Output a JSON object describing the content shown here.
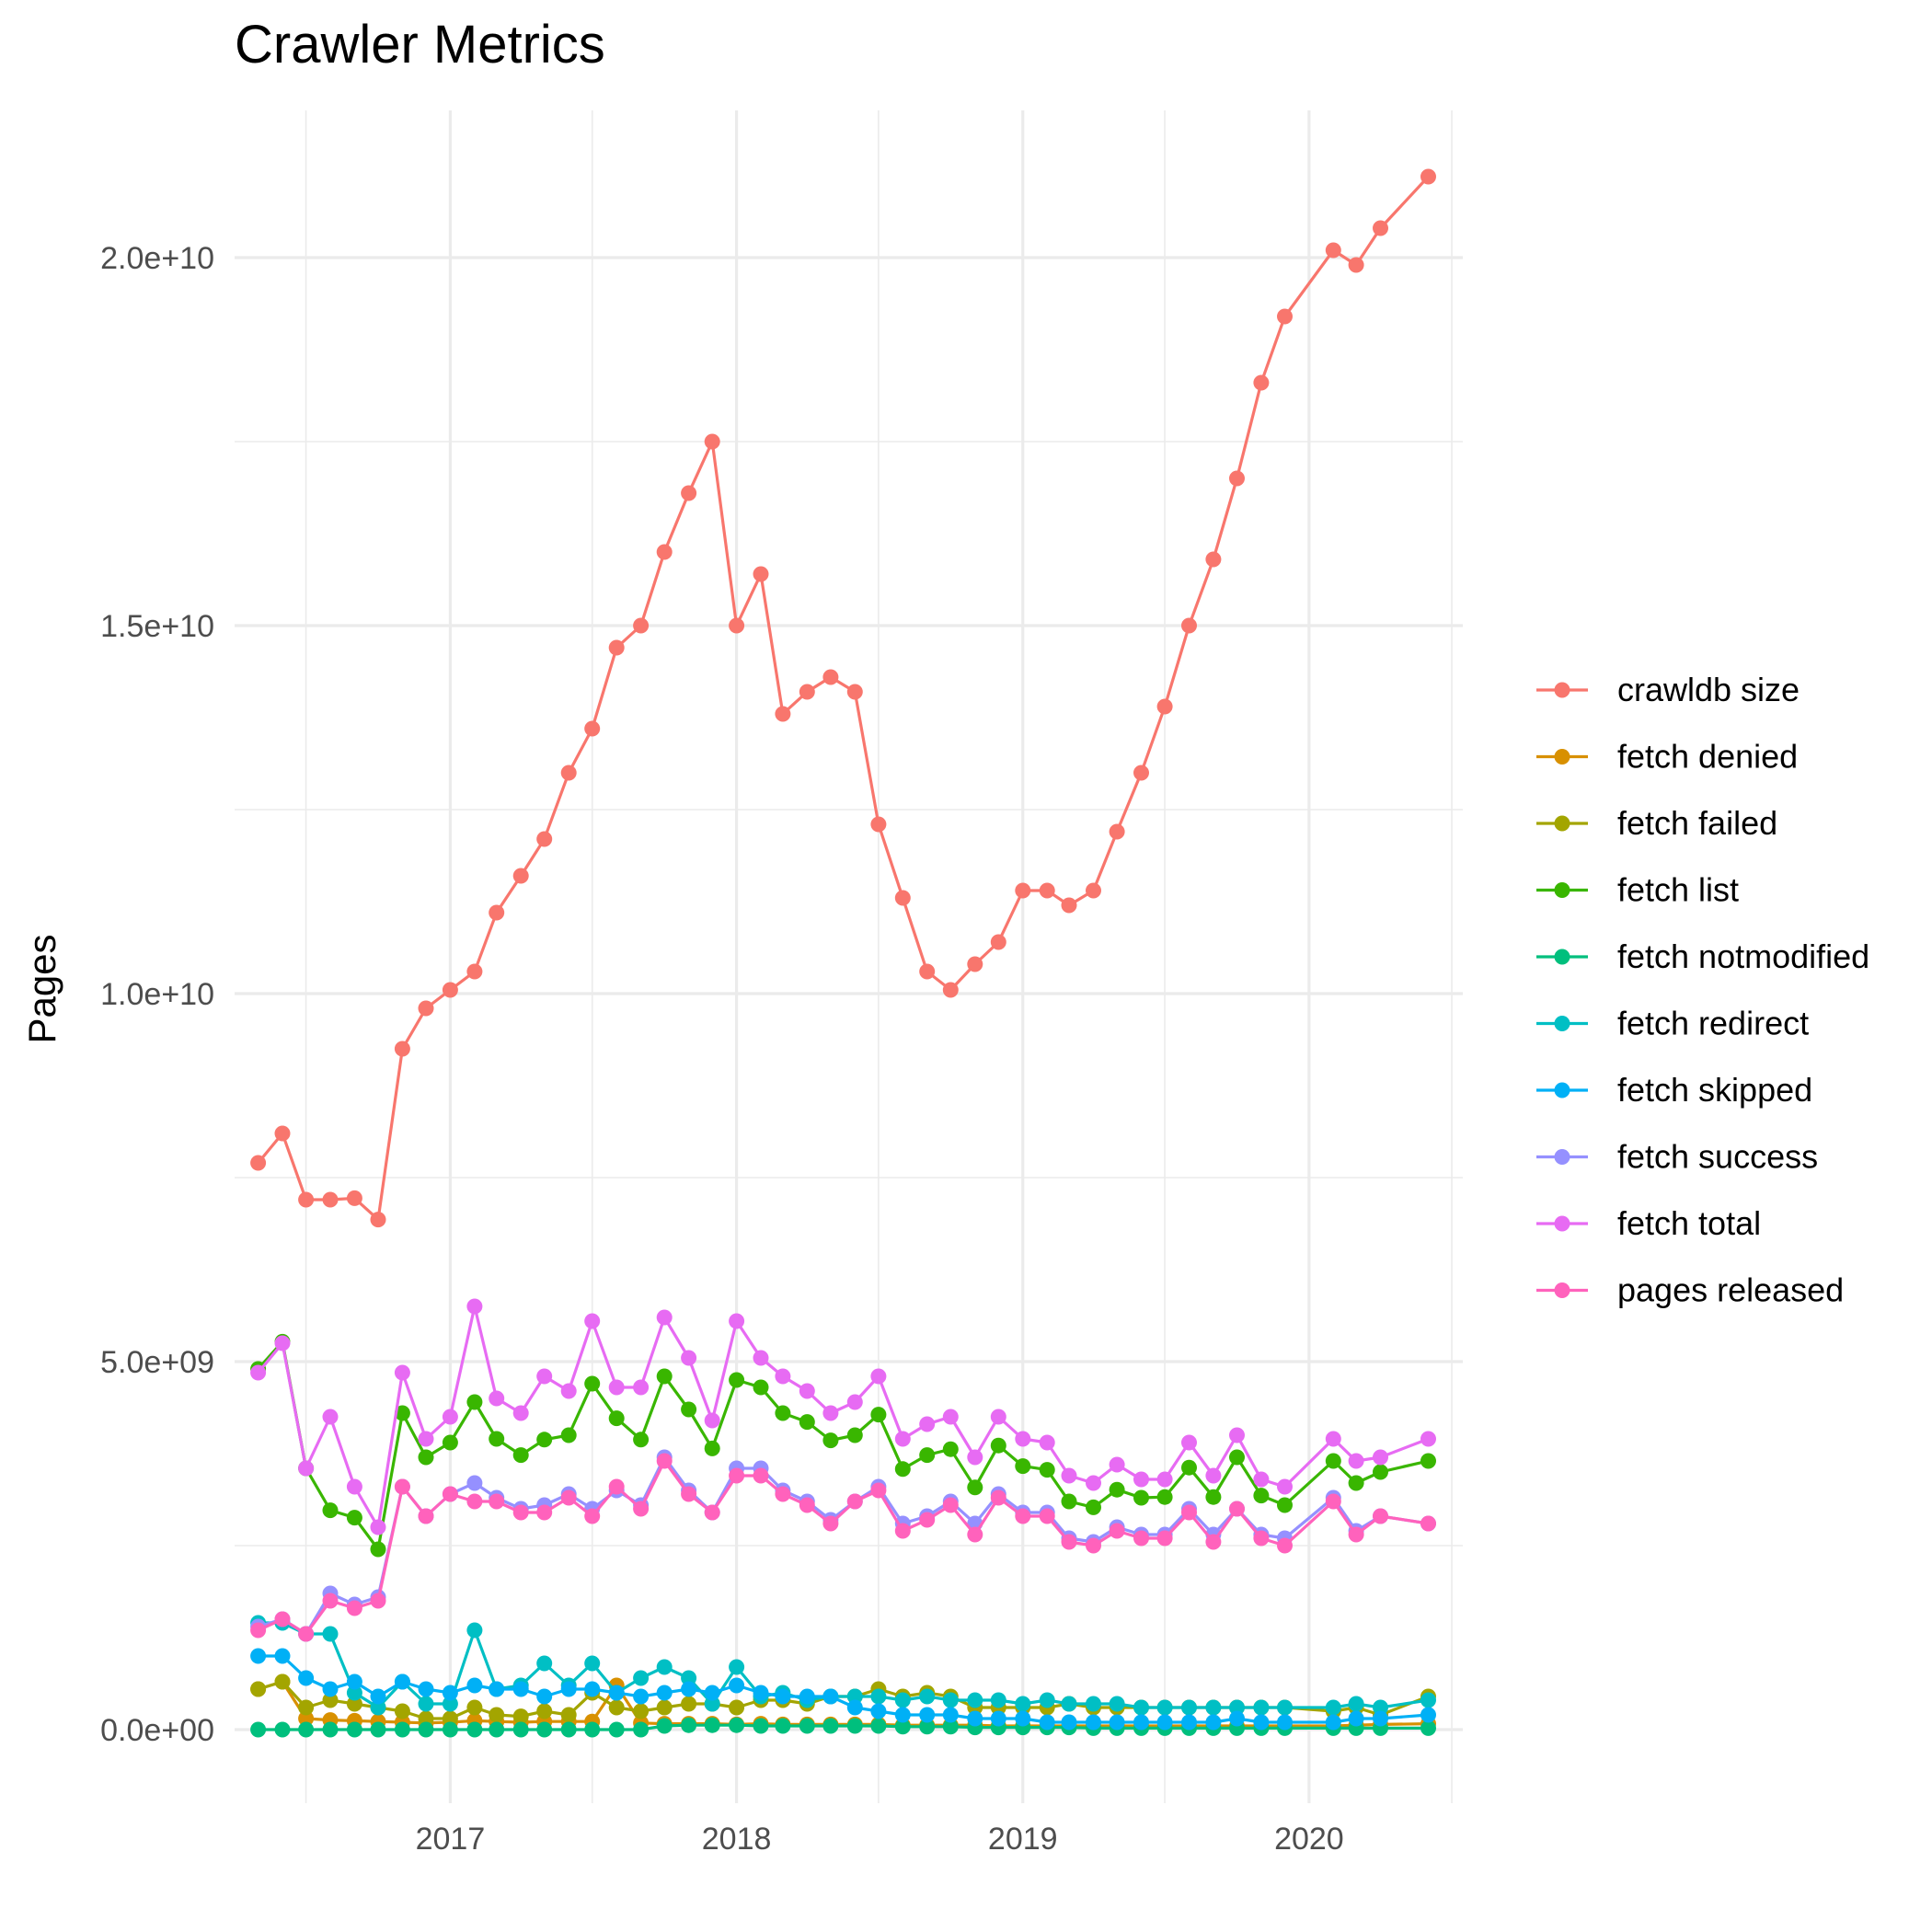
{
  "chart_data": {
    "type": "line",
    "title": "Crawler Metrics",
    "xlabel": "",
    "ylabel": "Pages",
    "x_scale": "date",
    "xlim": [
      "2016-04-01",
      "2020-07-15"
    ],
    "ylim": [
      -1000000000,
      22000000000
    ],
    "x_ticks": [
      "2017-01-01",
      "2018-01-01",
      "2019-01-01",
      "2020-01-01"
    ],
    "x_tick_labels": [
      "2017",
      "2018",
      "2019",
      "2020"
    ],
    "y_ticks": [
      0,
      5000000000,
      10000000000,
      15000000000,
      20000000000
    ],
    "y_tick_labels": [
      "0.0e+00",
      "5.0e+09",
      "1.0e+10",
      "1.5e+10",
      "2.0e+10"
    ],
    "grid": true,
    "legend_position": "right",
    "x": [
      "2016-05-01",
      "2016-06-01",
      "2016-07-01",
      "2016-08-01",
      "2016-09-01",
      "2016-10-01",
      "2016-11-01",
      "2016-12-01",
      "2017-01-01",
      "2017-02-01",
      "2017-03-01",
      "2017-04-01",
      "2017-05-01",
      "2017-06-01",
      "2017-07-01",
      "2017-08-01",
      "2017-09-01",
      "2017-10-01",
      "2017-11-01",
      "2017-12-01",
      "2018-01-01",
      "2018-02-01",
      "2018-03-01",
      "2018-04-01",
      "2018-05-01",
      "2018-06-01",
      "2018-07-01",
      "2018-08-01",
      "2018-09-01",
      "2018-10-01",
      "2018-11-01",
      "2018-12-01",
      "2019-01-01",
      "2019-02-01",
      "2019-03-01",
      "2019-04-01",
      "2019-05-01",
      "2019-06-01",
      "2019-07-01",
      "2019-08-01",
      "2019-09-01",
      "2019-10-01",
      "2019-11-01",
      "2019-12-01",
      "2020-01-01",
      "2020-02-01",
      "2020-03-01",
      "2020-04-01",
      "2020-05-01",
      "2020-06-01"
    ],
    "series": [
      {
        "name": "crawldb size",
        "color": "#F8766D",
        "values": [
          7700000000,
          8100000000,
          7200000000,
          7200000000,
          7220000000,
          6930000000,
          9250000000,
          9800000000,
          10050000000,
          10300000000,
          11100000000,
          11600000000,
          12100000000,
          13000000000,
          13600000000,
          14700000000,
          15000000000,
          16000000000,
          16800000000,
          17500000000,
          15000000000,
          15700000000,
          13800000000,
          14100000000,
          14300000000,
          14100000000,
          12300000000,
          11300000000,
          10300000000,
          10050000000,
          10400000000,
          10700000000,
          11400000000,
          11400000000,
          11200000000,
          11400000000,
          12200000000,
          13000000000,
          13900000000,
          15000000000,
          15900000000,
          17000000000,
          18300000000,
          19200000000,
          null,
          20100000000,
          19900000000,
          20400000000,
          null,
          21100000000
        ]
      },
      {
        "name": "fetch denied",
        "color": "#D89000",
        "values": [
          550000000,
          650000000,
          150000000,
          130000000,
          120000000,
          110000000,
          100000000,
          90000000,
          100000000,
          120000000,
          110000000,
          100000000,
          110000000,
          110000000,
          110000000,
          600000000,
          90000000,
          80000000,
          80000000,
          80000000,
          70000000,
          80000000,
          70000000,
          70000000,
          70000000,
          70000000,
          70000000,
          60000000,
          60000000,
          60000000,
          60000000,
          50000000,
          50000000,
          50000000,
          50000000,
          50000000,
          50000000,
          50000000,
          50000000,
          50000000,
          50000000,
          50000000,
          50000000,
          50000000,
          null,
          50000000,
          60000000,
          70000000,
          null,
          80000000
        ]
      },
      {
        "name": "fetch failed",
        "color": "#A3A500",
        "values": [
          550000000,
          650000000,
          300000000,
          400000000,
          350000000,
          300000000,
          250000000,
          150000000,
          150000000,
          300000000,
          200000000,
          180000000,
          250000000,
          200000000,
          500000000,
          300000000,
          250000000,
          300000000,
          350000000,
          350000000,
          300000000,
          400000000,
          400000000,
          350000000,
          450000000,
          450000000,
          550000000,
          450000000,
          500000000,
          450000000,
          300000000,
          300000000,
          300000000,
          300000000,
          350000000,
          300000000,
          300000000,
          300000000,
          300000000,
          300000000,
          300000000,
          300000000,
          300000000,
          300000000,
          null,
          250000000,
          300000000,
          200000000,
          null,
          450000000
        ]
      },
      {
        "name": "fetch list",
        "color": "#39B600",
        "values": [
          4900000000,
          5270000000,
          3550000000,
          2980000000,
          2880000000,
          2450000000,
          4300000000,
          3700000000,
          3900000000,
          4450000000,
          3950000000,
          3730000000,
          3940000000,
          4000000000,
          4700000000,
          4230000000,
          3940000000,
          4800000000,
          4350000000,
          3820000000,
          4750000000,
          4650000000,
          4300000000,
          4180000000,
          3930000000,
          4000000000,
          4280000000,
          3540000000,
          3730000000,
          3810000000,
          3290000000,
          3860000000,
          3580000000,
          3530000000,
          3100000000,
          3020000000,
          3260000000,
          3150000000,
          3160000000,
          3560000000,
          3160000000,
          3700000000,
          3180000000,
          3050000000,
          null,
          3650000000,
          3350000000,
          3500000000,
          null,
          3650000000
        ]
      },
      {
        "name": "fetch notmodified",
        "color": "#00BF7D",
        "values": [
          0,
          0,
          0,
          0,
          0,
          0,
          0,
          0,
          0,
          0,
          0,
          0,
          0,
          0,
          0,
          0,
          0,
          50000000,
          60000000,
          60000000,
          60000000,
          50000000,
          50000000,
          50000000,
          50000000,
          50000000,
          50000000,
          40000000,
          40000000,
          40000000,
          30000000,
          30000000,
          30000000,
          30000000,
          30000000,
          20000000,
          20000000,
          20000000,
          20000000,
          20000000,
          20000000,
          20000000,
          20000000,
          20000000,
          null,
          20000000,
          20000000,
          20000000,
          null,
          20000000
        ]
      },
      {
        "name": "fetch redirect",
        "color": "#00BFC4",
        "values": [
          1450000000,
          1450000000,
          1300000000,
          1300000000,
          500000000,
          300000000,
          650000000,
          350000000,
          350000000,
          1350000000,
          550000000,
          600000000,
          900000000,
          600000000,
          900000000,
          500000000,
          700000000,
          850000000,
          700000000,
          350000000,
          850000000,
          450000000,
          500000000,
          400000000,
          450000000,
          450000000,
          450000000,
          400000000,
          450000000,
          400000000,
          400000000,
          400000000,
          350000000,
          400000000,
          350000000,
          350000000,
          350000000,
          300000000,
          300000000,
          300000000,
          300000000,
          300000000,
          300000000,
          300000000,
          null,
          300000000,
          350000000,
          300000000,
          null,
          400000000
        ]
      },
      {
        "name": "fetch skipped",
        "color": "#00B0F6",
        "values": [
          1000000000,
          1000000000,
          700000000,
          550000000,
          650000000,
          450000000,
          650000000,
          550000000,
          500000000,
          600000000,
          550000000,
          550000000,
          450000000,
          550000000,
          550000000,
          500000000,
          450000000,
          500000000,
          550000000,
          500000000,
          600000000,
          500000000,
          450000000,
          450000000,
          450000000,
          300000000,
          250000000,
          200000000,
          200000000,
          200000000,
          150000000,
          150000000,
          150000000,
          100000000,
          100000000,
          100000000,
          100000000,
          100000000,
          100000000,
          100000000,
          100000000,
          150000000,
          100000000,
          100000000,
          null,
          100000000,
          150000000,
          150000000,
          null,
          200000000
        ]
      },
      {
        "name": "fetch success",
        "color": "#9590FF",
        "values": [
          1400000000,
          1500000000,
          1300000000,
          1850000000,
          1700000000,
          1800000000,
          3300000000,
          2900000000,
          3200000000,
          3350000000,
          3150000000,
          3000000000,
          3050000000,
          3200000000,
          3000000000,
          3250000000,
          3050000000,
          3700000000,
          3250000000,
          2950000000,
          3550000000,
          3550000000,
          3250000000,
          3100000000,
          2850000000,
          3100000000,
          3300000000,
          2800000000,
          2900000000,
          3100000000,
          2800000000,
          3200000000,
          2950000000,
          2950000000,
          2600000000,
          2550000000,
          2750000000,
          2650000000,
          2650000000,
          3000000000,
          2650000000,
          3000000000,
          2650000000,
          2600000000,
          null,
          3150000000,
          2700000000,
          2900000000,
          null,
          2800000000
        ]
      },
      {
        "name": "fetch total",
        "color": "#E76BF3",
        "values": [
          4850000000,
          5250000000,
          3550000000,
          4250000000,
          3300000000,
          2750000000,
          4850000000,
          3950000000,
          4250000000,
          5750000000,
          4500000000,
          4300000000,
          4800000000,
          4600000000,
          5550000000,
          4650000000,
          4650000000,
          5600000000,
          5050000000,
          4200000000,
          5550000000,
          5050000000,
          4800000000,
          4600000000,
          4300000000,
          4450000000,
          4800000000,
          3950000000,
          4150000000,
          4250000000,
          3700000000,
          4250000000,
          3950000000,
          3900000000,
          3450000000,
          3350000000,
          3600000000,
          3400000000,
          3400000000,
          3900000000,
          3450000000,
          4000000000,
          3400000000,
          3300000000,
          null,
          3950000000,
          3650000000,
          3700000000,
          null,
          3950000000
        ]
      },
      {
        "name": "pages released",
        "color": "#FF62BC",
        "values": [
          1350000000,
          1500000000,
          1300000000,
          1750000000,
          1650000000,
          1750000000,
          3300000000,
          2900000000,
          3200000000,
          3100000000,
          3100000000,
          2950000000,
          2950000000,
          3150000000,
          2900000000,
          3300000000,
          3000000000,
          3650000000,
          3200000000,
          2950000000,
          3450000000,
          3450000000,
          3200000000,
          3050000000,
          2800000000,
          3100000000,
          3250000000,
          2700000000,
          2850000000,
          3050000000,
          2650000000,
          3150000000,
          2900000000,
          2900000000,
          2550000000,
          2500000000,
          2700000000,
          2600000000,
          2600000000,
          2950000000,
          2550000000,
          3000000000,
          2600000000,
          2500000000,
          null,
          3100000000,
          2650000000,
          2900000000,
          null,
          2800000000
        ]
      }
    ]
  }
}
